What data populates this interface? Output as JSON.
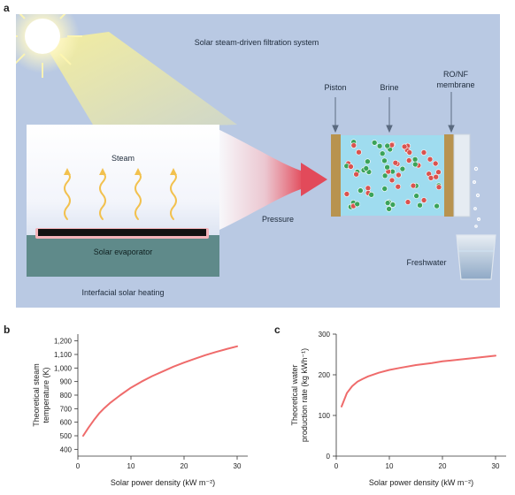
{
  "panel_a": {
    "letter": "a",
    "title": "Solar steam-driven filtration system",
    "labels": {
      "steam": "Steam",
      "evaporator": "Solar evaporator",
      "heating": "Interfacial solar heating",
      "pressure": "Pressure",
      "piston": "Piston",
      "brine": "Brine",
      "membrane_line1": "RO/NF",
      "membrane_line2": "membrane",
      "freshwater": "Freshwater"
    },
    "colors": {
      "background": "#b9c9e3",
      "base": "#5f8a8a",
      "piston": "#b8934f",
      "water": "#9fdcef",
      "molecule_red": "#d9534f",
      "molecule_green": "#3aa35a",
      "arrow": "#e24a5a",
      "sun": "#fff7b0",
      "steam_wave": "#f2c14e"
    }
  },
  "chart_data": [
    {
      "type": "line",
      "letter": "b",
      "xlabel": "Solar power density (kW m⁻²)",
      "ylabel_line1": "Theoretical steam",
      "ylabel_line2": "temperature (K)",
      "xlim": [
        0,
        32
      ],
      "ylim": [
        350,
        1250
      ],
      "xticks": [
        0,
        10,
        20,
        30
      ],
      "yticks": [
        400,
        500,
        600,
        700,
        800,
        900,
        1000,
        1100,
        1200
      ],
      "ytick_labels": [
        "400",
        "500",
        "600",
        "700",
        "800",
        "900",
        "1,000",
        "1,100",
        "1,200"
      ],
      "color": "#ef6b6b",
      "x": [
        1,
        2,
        3,
        4,
        5,
        6,
        8,
        10,
        12,
        14,
        16,
        18,
        20,
        22,
        24,
        26,
        28,
        30
      ],
      "y": [
        500,
        560,
        615,
        665,
        705,
        740,
        800,
        855,
        900,
        940,
        975,
        1010,
        1040,
        1068,
        1095,
        1118,
        1140,
        1160
      ]
    },
    {
      "type": "line",
      "letter": "c",
      "xlabel": "Solar power density (kW m⁻²)",
      "ylabel_line1": "Theoretical water",
      "ylabel_line2": "production rate (kg kWh⁻¹)",
      "xlim": [
        0,
        32
      ],
      "ylim": [
        0,
        300
      ],
      "xticks": [
        0,
        10,
        20,
        30
      ],
      "yticks": [
        0,
        100,
        200,
        300
      ],
      "ytick_labels": [
        "0",
        "100",
        "200",
        "300"
      ],
      "color": "#ef6b6b",
      "x": [
        1,
        2,
        3,
        4,
        5,
        6,
        8,
        10,
        12,
        15,
        18,
        20,
        25,
        30
      ],
      "y": [
        122,
        155,
        172,
        183,
        190,
        196,
        205,
        212,
        217,
        224,
        229,
        233,
        240,
        247
      ]
    }
  ]
}
